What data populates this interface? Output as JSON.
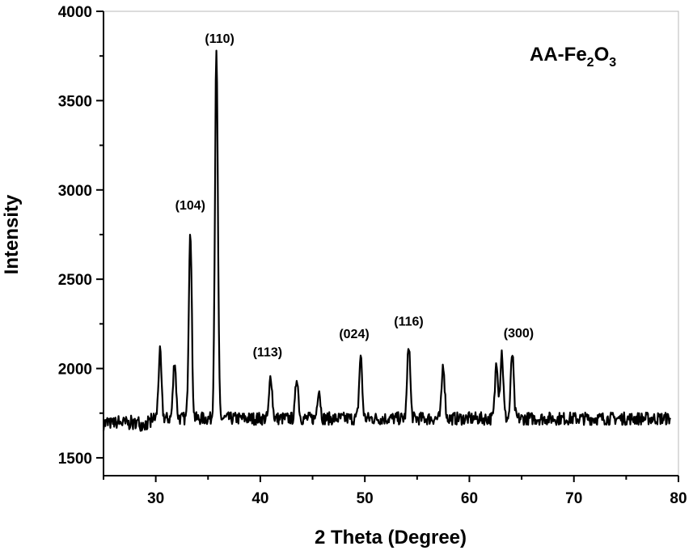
{
  "chart_data": {
    "type": "line",
    "title": "",
    "xlabel": "2 Theta (Degree)",
    "ylabel": "Intensity",
    "xlim": [
      25,
      80
    ],
    "ylim": [
      1400,
      4000
    ],
    "xticks": [
      30,
      40,
      50,
      60,
      70,
      80
    ],
    "yticks": [
      1500,
      2000,
      2500,
      3000,
      3500,
      4000
    ],
    "grid": false,
    "sample_label": {
      "prefix": "AA-Fe",
      "sub1": "2",
      "mid": "O",
      "sub2": "3"
    },
    "line_color": "#000000",
    "baseline": 1720,
    "noise_amplitude": 45,
    "peaks": [
      {
        "x": 30.4,
        "y": 2090,
        "label": ""
      },
      {
        "x": 31.8,
        "y": 2045,
        "label": ""
      },
      {
        "x": 33.3,
        "y": 2790,
        "label": "(104)"
      },
      {
        "x": 35.8,
        "y": 3760,
        "label": "(110)"
      },
      {
        "x": 41.0,
        "y": 1960,
        "label": "(113)"
      },
      {
        "x": 43.5,
        "y": 1955,
        "label": ""
      },
      {
        "x": 45.6,
        "y": 1890,
        "label": ""
      },
      {
        "x": 49.6,
        "y": 2070,
        "label": "(024)"
      },
      {
        "x": 54.2,
        "y": 2140,
        "label": "(116)"
      },
      {
        "x": 57.5,
        "y": 2025,
        "label": ""
      },
      {
        "x": 62.6,
        "y": 2045,
        "label": ""
      },
      {
        "x": 63.1,
        "y": 2090,
        "label": ""
      },
      {
        "x": 64.1,
        "y": 2085,
        "label": "(300)"
      }
    ]
  }
}
